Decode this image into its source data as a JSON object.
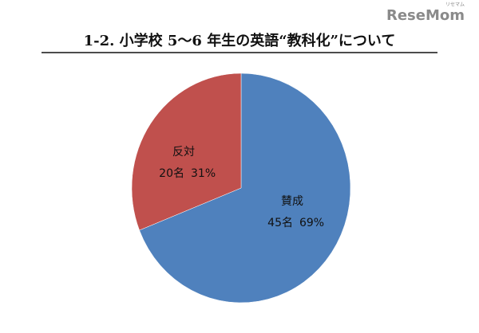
{
  "chart_data": {
    "type": "pie",
    "title": "1-2.  小学校 5～6 年生の英語“教科化”について",
    "watermark": "ReseMom",
    "watermark_sub": "リセマム",
    "categories": [
      "賛成",
      "反対"
    ],
    "values": [
      69,
      31
    ],
    "value_labels": [
      "69%",
      "31%"
    ],
    "counts": [
      45,
      20
    ],
    "count_labels": [
      "45名",
      "20名"
    ],
    "colors": [
      "#4f81bd",
      "#c0504d"
    ]
  }
}
